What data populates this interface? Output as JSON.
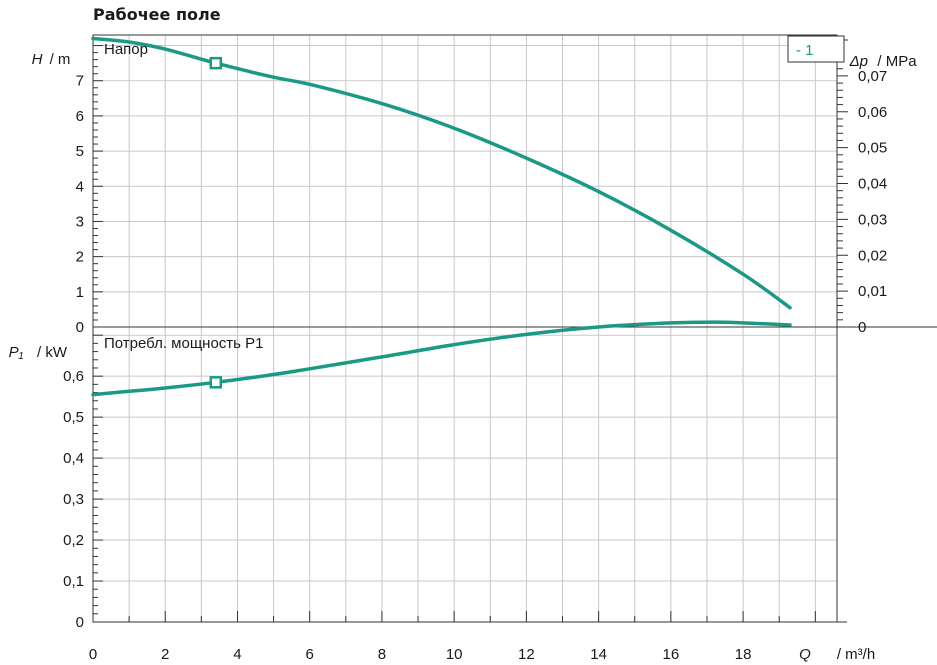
{
  "page": {
    "title": "Рабочее поле"
  },
  "colors": {
    "curve": "#1a9a86",
    "grid": "#c8c8c8",
    "frame": "#333333",
    "text": "#1a1a1a"
  },
  "chart_data": [
    {
      "type": "line",
      "panel_label": "Напор",
      "y_axis_left": {
        "symbol": "H",
        "unit": "/ m",
        "range": [
          0,
          8.3
        ],
        "ticks": [
          "0",
          "1",
          "2",
          "3",
          "4",
          "5",
          "6",
          "7"
        ]
      },
      "y_axis_right": {
        "symbol": "Δp",
        "unit": "/ MPa",
        "ticks": [
          "0",
          "0,01",
          "0,02",
          "0,03",
          "0,04",
          "0,05",
          "0,06",
          "0,07"
        ]
      },
      "legend": {
        "label": "- 1",
        "placement": "top-right"
      },
      "series": [
        {
          "name": "1",
          "x": [
            0,
            1,
            2,
            3.4,
            5,
            6,
            8,
            10,
            12,
            14,
            16,
            18,
            19.3
          ],
          "y": [
            8.2,
            8.1,
            7.9,
            7.5,
            7.1,
            6.9,
            6.35,
            5.65,
            4.8,
            3.85,
            2.75,
            1.5,
            0.55
          ]
        }
      ],
      "marker": {
        "x": 3.4,
        "y": 7.5
      }
    },
    {
      "type": "line",
      "panel_label": "Потребл. мощность P1",
      "y_axis_left": {
        "symbol": "P₁",
        "unit": "/ kW",
        "range": [
          0,
          0.72
        ],
        "ticks": [
          "0",
          "0,1",
          "0,2",
          "0,3",
          "0,4",
          "0,5",
          "0,6"
        ]
      },
      "x_axis": {
        "symbol": "Q",
        "unit": "/ m³/h",
        "range": [
          0,
          20.6
        ],
        "ticks": [
          "0",
          "2",
          "4",
          "6",
          "8",
          "10",
          "12",
          "14",
          "16",
          "18"
        ]
      },
      "series": [
        {
          "name": "1",
          "x": [
            0,
            1,
            2,
            3.4,
            5,
            6,
            8,
            10,
            12,
            14,
            16,
            17.2,
            18,
            19.3
          ],
          "y": [
            0.555,
            0.563,
            0.571,
            0.585,
            0.604,
            0.618,
            0.647,
            0.677,
            0.702,
            0.72,
            0.73,
            0.732,
            0.73,
            0.725
          ]
        }
      ],
      "marker": {
        "x": 3.4,
        "y": 0.585
      }
    }
  ]
}
